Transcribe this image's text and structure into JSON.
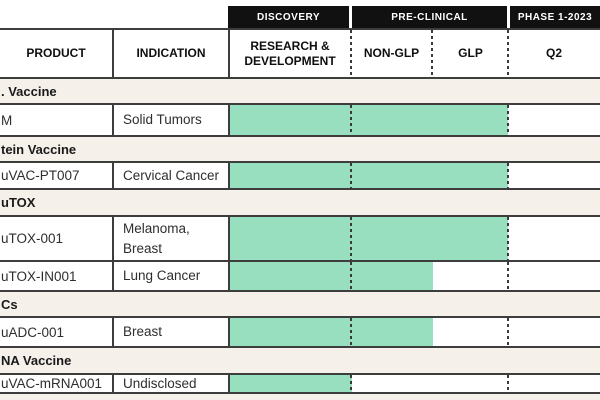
{
  "colors": {
    "bar_fill": "#97DFBF",
    "section_row_bg": "#F5F0EA",
    "phase_band_bg": "#111111",
    "border": "#3D3D3D",
    "header_text": "#0F0F0F",
    "cell_text": "#2E2E2E",
    "phase_band_text": "#FFFFFF"
  },
  "phase_band": {
    "discovery": "DISCOVERY",
    "preclinical": "PRE-CLINICAL",
    "phase1": "PHASE 1-2023"
  },
  "column_headers": {
    "product": "PRODUCT",
    "indication": "INDICATION",
    "rd": "RESEARCH & DEVELOPMENT",
    "nonglp": "NON-GLP",
    "glp": "GLP",
    "q2": "Q2"
  },
  "chart_data": {
    "type": "table",
    "title": "",
    "phase_groups": [
      "DISCOVERY",
      "PRE-CLINICAL",
      "PHASE 1-2023"
    ],
    "columns": [
      "PRODUCT",
      "INDICATION",
      "RESEARCH & DEVELOPMENT",
      "NON-GLP",
      "GLP",
      "Q2"
    ],
    "rows": [
      {
        "kind": "section",
        "label": ". Vaccine"
      },
      {
        "kind": "product",
        "product": "M",
        "indication": "Solid Tumors",
        "progress_through": "GLP",
        "progress_code": "glp"
      },
      {
        "kind": "section",
        "label": "tein Vaccine"
      },
      {
        "kind": "product",
        "product": "uVAC-PT007",
        "indication": "Cervical Cancer",
        "progress_through": "GLP",
        "progress_code": "glp"
      },
      {
        "kind": "section",
        "label": "uTOX"
      },
      {
        "kind": "product",
        "product": "uTOX-001",
        "indication": "Melanoma,\nBreast",
        "progress_through": "GLP",
        "progress_code": "glp"
      },
      {
        "kind": "product",
        "product": "uTOX-IN001",
        "indication": "Lung Cancer",
        "progress_through": "NON-GLP",
        "progress_code": "nonglp"
      },
      {
        "kind": "section",
        "label": "Cs"
      },
      {
        "kind": "product",
        "product": "uADC-001",
        "indication": "Breast",
        "progress_through": "NON-GLP",
        "progress_code": "nonglp"
      },
      {
        "kind": "section",
        "label": "NA Vaccine"
      },
      {
        "kind": "product",
        "product": "uVAC-mRNA001",
        "indication": "Undisclosed",
        "progress_through": "RESEARCH & DEVELOPMENT",
        "progress_code": "rd"
      }
    ]
  }
}
